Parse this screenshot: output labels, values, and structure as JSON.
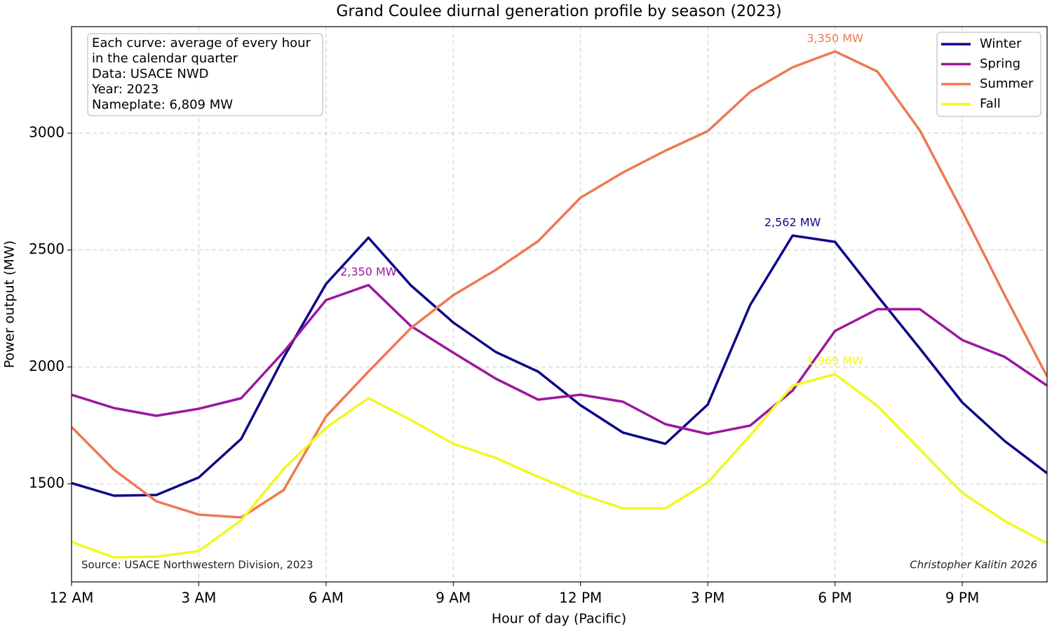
{
  "chart_data": {
    "type": "line",
    "title": "Grand Coulee diurnal generation profile by season (2023)",
    "x_label": "Hour of day (Pacific)",
    "y_label": "Power output (MW)",
    "x": [
      0,
      1,
      2,
      3,
      4,
      5,
      6,
      7,
      8,
      9,
      10,
      11,
      12,
      13,
      14,
      15,
      16,
      17,
      18,
      19,
      20,
      21,
      22,
      23
    ],
    "xlim": [
      0,
      23
    ],
    "xticks": [
      {
        "value": 0,
        "label": "12 AM"
      },
      {
        "value": 3,
        "label": "3 AM"
      },
      {
        "value": 6,
        "label": "6 AM"
      },
      {
        "value": 9,
        "label": "9 AM"
      },
      {
        "value": 12,
        "label": "12 PM"
      },
      {
        "value": 15,
        "label": "3 PM"
      },
      {
        "value": 18,
        "label": "6 PM"
      },
      {
        "value": 21,
        "label": "9 PM"
      }
    ],
    "ylim": [
      1080,
      3456
    ],
    "yticks": [
      1500,
      2000,
      2500,
      3000
    ],
    "grid": true,
    "legend_position": "upper right",
    "series": [
      {
        "name": "Winter",
        "color": "#0d0887",
        "values": [
          1503,
          1449,
          1452,
          1527,
          1692,
          2040,
          2355,
          2553,
          2349,
          2190,
          2064,
          1980,
          1836,
          1719,
          1671,
          1839,
          2265,
          2562,
          2535,
          2304,
          2079,
          1848,
          1683,
          1545
        ],
        "value_labels": [
          null,
          null,
          null,
          null,
          null,
          null,
          null,
          null,
          null,
          null,
          null,
          null,
          null,
          null,
          null,
          null,
          null,
          "2,562 MW",
          null,
          null,
          null,
          null,
          null,
          null
        ]
      },
      {
        "name": "Spring",
        "color": "#9c179e",
        "values": [
          1881,
          1824,
          1791,
          1821,
          1866,
          2064,
          2286,
          2350,
          2175,
          2061,
          1950,
          1860,
          1881,
          1851,
          1755,
          1713,
          1749,
          1899,
          2154,
          2247,
          2247,
          2115,
          2043,
          1920
        ],
        "value_labels": [
          null,
          null,
          null,
          null,
          null,
          null,
          null,
          "2,350 MW",
          null,
          null,
          null,
          null,
          null,
          null,
          null,
          null,
          null,
          null,
          null,
          null,
          null,
          null,
          null,
          null
        ]
      },
      {
        "name": "Summer",
        "color": "#ed7953",
        "values": [
          1743,
          1560,
          1425,
          1368,
          1356,
          1473,
          1788,
          1980,
          2166,
          2307,
          2415,
          2538,
          2724,
          2832,
          2925,
          3009,
          3177,
          3282,
          3350,
          3264,
          3012,
          2667,
          2307,
          1959
        ],
        "value_labels": [
          null,
          null,
          null,
          null,
          null,
          null,
          null,
          null,
          null,
          null,
          null,
          null,
          null,
          null,
          null,
          null,
          null,
          null,
          "3,350 MW",
          null,
          null,
          null,
          null,
          null
        ]
      },
      {
        "name": "Fall",
        "color": "#f0f921",
        "values": [
          1251,
          1185,
          1188,
          1212,
          1344,
          1563,
          1740,
          1866,
          1773,
          1671,
          1611,
          1530,
          1455,
          1395,
          1395,
          1506,
          1707,
          1920,
          1969,
          1833,
          1647,
          1461,
          1341,
          1245
        ],
        "value_labels": [
          null,
          null,
          null,
          null,
          null,
          null,
          null,
          null,
          null,
          null,
          null,
          null,
          null,
          null,
          null,
          null,
          null,
          null,
          "1,969 MW",
          null,
          null,
          null,
          null,
          null
        ]
      }
    ],
    "info_box": [
      "Each curve: average of every hour",
      "in the calendar quarter",
      "Data: USACE NWD",
      "Year: 2023",
      "Nameplate: 6,809 MW"
    ],
    "source": "Source: USACE Northwestern Division, 2023",
    "credit": "Christopher Kalitin 2026"
  }
}
